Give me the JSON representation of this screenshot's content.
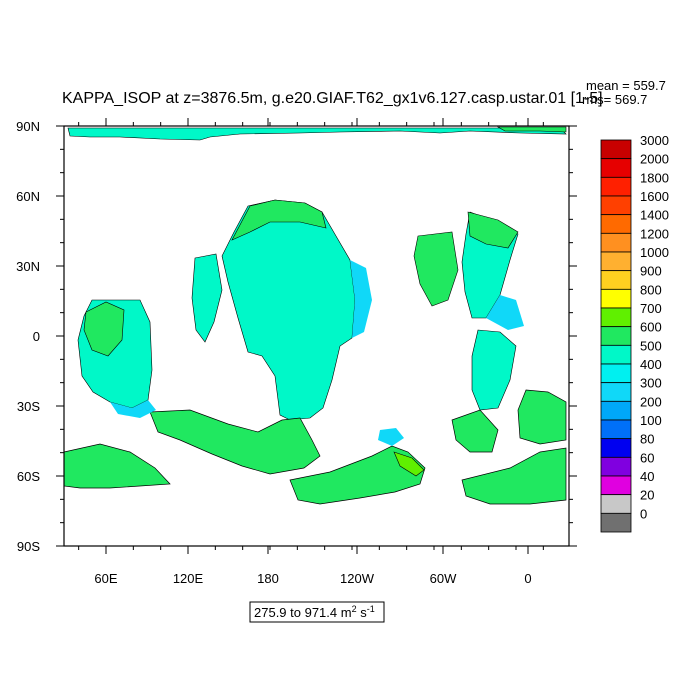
{
  "figure": {
    "title": "KAPPA_ISOP at z=3876.5m, g.e20.GIAF.T62_gx1v6.127.casp.ustar.01 [1-5]",
    "stats": {
      "mean": "mean = 559.7",
      "rms": "rms= 569.7"
    },
    "range_label_main": "275.9 to 971.4 m",
    "range_label_sup": "2",
    "range_label_mid": " s",
    "range_label_sup2": "-1"
  },
  "axes": {
    "lat_ticks": [
      "90N",
      "60N",
      "30N",
      "0",
      "30S",
      "60S",
      "90S"
    ],
    "lon_ticks": [
      "60E",
      "120E",
      "180",
      "120W",
      "60W",
      "0"
    ]
  },
  "colorbar": {
    "levels": [
      "3000",
      "2000",
      "1800",
      "1600",
      "1400",
      "1200",
      "1000",
      "900",
      "800",
      "700",
      "600",
      "500",
      "400",
      "300",
      "200",
      "100",
      "80",
      "60",
      "40",
      "20",
      "0"
    ],
    "colors": [
      "#c80000",
      "#e60000",
      "#ff2000",
      "#ff4000",
      "#ff6a00",
      "#ff9020",
      "#ffb030",
      "#ffd020",
      "#ffff00",
      "#60f000",
      "#20e860",
      "#00f8c8",
      "#00f0f0",
      "#10d8f8",
      "#00a8f8",
      "#0070f8",
      "#0000f0",
      "#8000e0",
      "#e000e0",
      "#c8c8c8",
      "#707070"
    ]
  },
  "map_colors": {
    "ocean_mid": "#00f8c8",
    "ocean_high": "#20e860",
    "ocean_low": "#10d8f8",
    "contour": "#000000",
    "land": "#ffffff"
  }
}
